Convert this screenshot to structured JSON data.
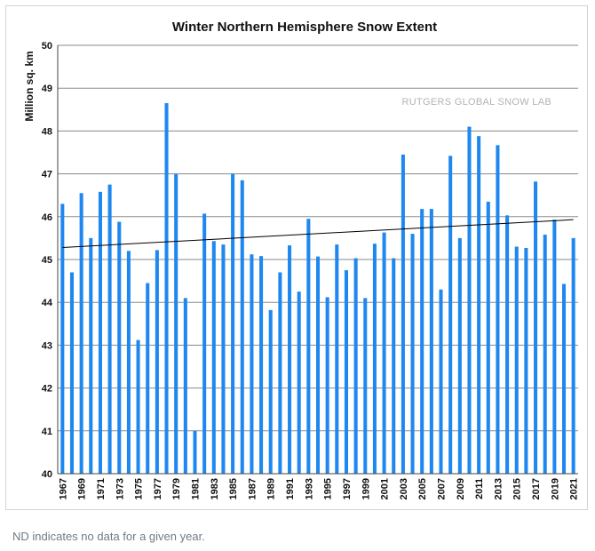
{
  "chart_data": {
    "type": "bar",
    "title": "Winter Northern Hemisphere Snow Extent",
    "ylabel": "Million sq. km",
    "xlabel": "",
    "ylim": [
      40,
      50
    ],
    "yticks": [
      40,
      41,
      42,
      43,
      44,
      45,
      46,
      47,
      48,
      49,
      50
    ],
    "grid": true,
    "bar_color": "#1e88f0",
    "trend_color": "#000000",
    "watermark": "RUTGERS GLOBAL SNOW LAB",
    "trend": {
      "start": 45.28,
      "end": 45.93
    },
    "x_tick_labels": [
      "1967",
      "1969",
      "1971",
      "1973",
      "1975",
      "1977",
      "1979",
      "1981",
      "1983",
      "1985",
      "1987",
      "1989",
      "1991",
      "1993",
      "1995",
      "1997",
      "1999",
      "2001",
      "2003",
      "2005",
      "2007",
      "2009",
      "2011",
      "2013",
      "2015",
      "2017",
      "2019",
      "2021"
    ],
    "categories": [
      "1967",
      "1968",
      "1969",
      "1970",
      "1971",
      "1972",
      "1973",
      "1974",
      "1975",
      "1976",
      "1977",
      "1978",
      "1979",
      "1980",
      "1981",
      "1982",
      "1983",
      "1984",
      "1985",
      "1986",
      "1987",
      "1988",
      "1989",
      "1990",
      "1991",
      "1992",
      "1993",
      "1994",
      "1995",
      "1996",
      "1997",
      "1998",
      "1999",
      "2000",
      "2001",
      "2002",
      "2003",
      "2004",
      "2005",
      "2006",
      "2007",
      "2008",
      "2009",
      "2010",
      "2011",
      "2012",
      "2013",
      "2014",
      "2015",
      "2016",
      "2017",
      "2018",
      "2019",
      "2020",
      "2021"
    ],
    "values": [
      46.3,
      44.7,
      46.55,
      45.5,
      46.58,
      46.75,
      45.88,
      45.2,
      43.12,
      44.45,
      45.22,
      48.65,
      47.0,
      44.1,
      41.0,
      46.07,
      45.43,
      45.35,
      47.0,
      46.85,
      45.12,
      45.08,
      43.82,
      44.7,
      45.33,
      44.25,
      45.95,
      45.07,
      44.12,
      45.35,
      44.75,
      45.03,
      44.1,
      45.37,
      45.63,
      45.03,
      47.45,
      45.6,
      46.18,
      46.18,
      44.3,
      47.42,
      45.5,
      48.1,
      47.88,
      46.35,
      47.67,
      46.03,
      45.3,
      45.27,
      46.82,
      45.58,
      45.93,
      44.43,
      45.5
    ]
  },
  "footnote": "ND indicates no data for a given year."
}
